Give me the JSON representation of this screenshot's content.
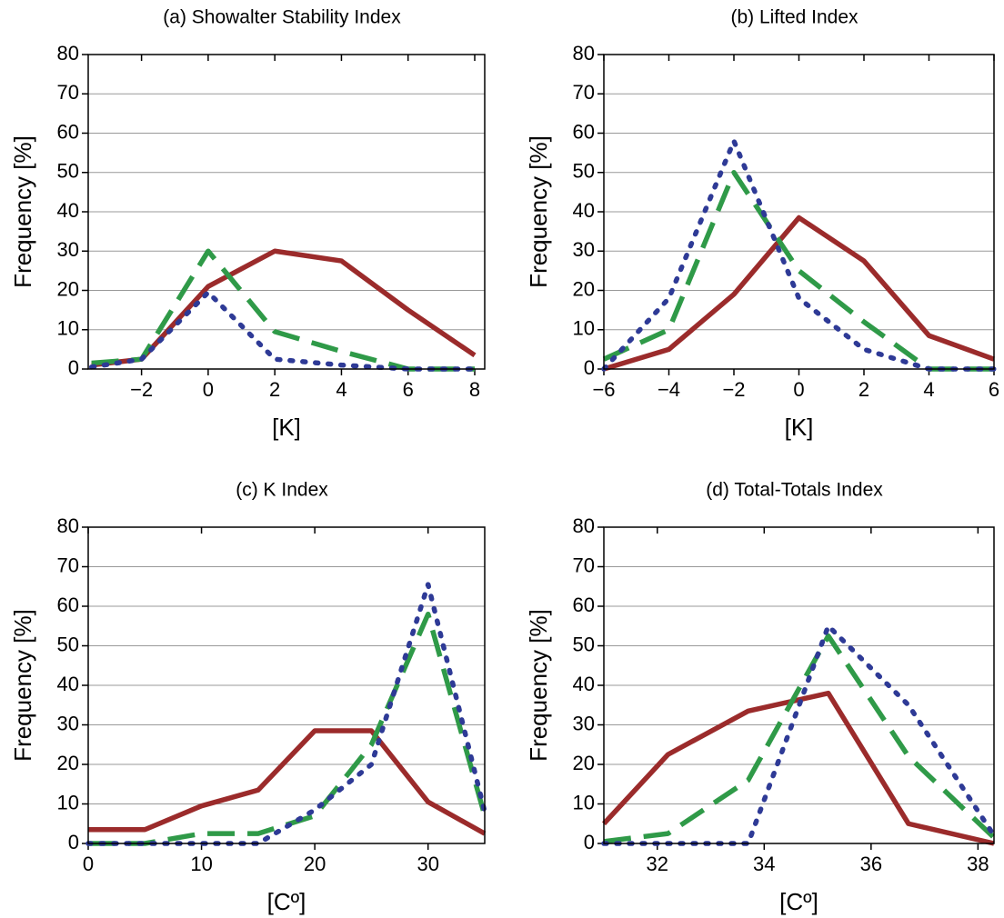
{
  "chart_data": [
    {
      "type": "line",
      "title": "(a) Showalter Stability Index",
      "x_label": "[K]",
      "y_label": "Frequency [%]",
      "x": [
        -3.5,
        -2,
        0,
        2,
        4,
        6,
        8
      ],
      "series": [
        {
          "color": "#9b2b2b",
          "dash": "solid",
          "values": [
            1,
            2.5,
            21,
            30,
            27.5,
            15,
            3.5
          ]
        },
        {
          "color": "#2f9a48",
          "dash": "dashed",
          "values": [
            1.5,
            2.5,
            30,
            9.5,
            4.5,
            0,
            0
          ]
        },
        {
          "color": "#2e3a96",
          "dash": "dotted",
          "values": [
            0.5,
            2.5,
            19.5,
            2.5,
            1,
            0,
            0
          ]
        }
      ],
      "xlim": [
        -3.6,
        8.3
      ],
      "xticks": [
        {
          "value": -2,
          "label": "−2"
        },
        0,
        2,
        4,
        6,
        8
      ],
      "ylim": [
        0,
        80
      ],
      "yticks": [
        0,
        10,
        20,
        30,
        40,
        50,
        60,
        70,
        80
      ],
      "grid": true
    },
    {
      "type": "line",
      "title": "(b) Lifted Index",
      "x_label": "[K]",
      "y_label": "Frequency [%]",
      "x": [
        -6,
        -4,
        -2,
        0,
        2,
        4,
        6
      ],
      "series": [
        {
          "color": "#9b2b2b",
          "dash": "solid",
          "values": [
            0,
            5,
            19,
            38.5,
            27.5,
            8.5,
            2.5
          ]
        },
        {
          "color": "#2f9a48",
          "dash": "dashed",
          "values": [
            2.5,
            10,
            50,
            25,
            12,
            0,
            0
          ]
        },
        {
          "color": "#2e3a96",
          "dash": "dotted",
          "values": [
            0,
            18,
            58,
            18,
            5,
            0,
            0
          ]
        }
      ],
      "xlim": [
        -6,
        6
      ],
      "xticks": [
        {
          "value": -6,
          "label": "−6"
        },
        {
          "value": -4,
          "label": "−4"
        },
        {
          "value": -2,
          "label": "−2"
        },
        0,
        2,
        4,
        6
      ],
      "ylim": [
        0,
        80
      ],
      "yticks": [
        0,
        10,
        20,
        30,
        40,
        50,
        60,
        70,
        80
      ],
      "grid": true
    },
    {
      "type": "line",
      "title": "(c) K Index",
      "x_label": "[Cº]",
      "y_label": "Frequency [%]",
      "x": [
        0,
        5,
        10,
        15,
        20,
        25,
        30,
        35
      ],
      "series": [
        {
          "color": "#9b2b2b",
          "dash": "solid",
          "values": [
            3.5,
            3.5,
            9.5,
            13.5,
            28.5,
            28.5,
            10.5,
            2.5
          ]
        },
        {
          "color": "#2f9a48",
          "dash": "dashed",
          "values": [
            0,
            0,
            2.5,
            2.5,
            7,
            25,
            58,
            7
          ]
        },
        {
          "color": "#2e3a96",
          "dash": "dotted",
          "values": [
            0,
            0,
            0,
            0,
            8.5,
            20,
            65.5,
            8
          ]
        }
      ],
      "xlim": [
        0,
        35
      ],
      "xticks": [
        0,
        10,
        20,
        30
      ],
      "ylim": [
        0,
        80
      ],
      "yticks": [
        0,
        10,
        20,
        30,
        40,
        50,
        60,
        70,
        80
      ],
      "grid": true
    },
    {
      "type": "line",
      "title": "(d) Total-Totals Index",
      "x_label": "[Cº]",
      "y_label": "Frequency [%]",
      "x": [
        31,
        32.2,
        33.7,
        35.2,
        36.7,
        38.3
      ],
      "series": [
        {
          "color": "#9b2b2b",
          "dash": "solid",
          "values": [
            5,
            22.5,
            33.5,
            38,
            5,
            0
          ]
        },
        {
          "color": "#2f9a48",
          "dash": "dashed",
          "values": [
            0.5,
            2.5,
            16,
            52.5,
            22,
            1.5
          ]
        },
        {
          "color": "#2e3a96",
          "dash": "dotted",
          "values": [
            0,
            0,
            0,
            55,
            35,
            2
          ]
        }
      ],
      "xlim": [
        31,
        38.3
      ],
      "xticks": [
        32,
        34,
        36,
        38
      ],
      "ylim": [
        0,
        80
      ],
      "yticks": [
        0,
        10,
        20,
        30,
        40,
        50,
        60,
        70,
        80
      ],
      "grid": true
    }
  ]
}
